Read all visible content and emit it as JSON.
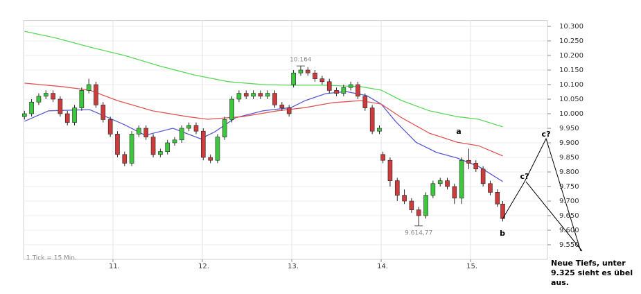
{
  "chart_data": {
    "type": "candlestick",
    "footer": "1 Tick = 15 Min.",
    "xlim": [
      10,
      15.86
    ],
    "xticks": [
      {
        "value": 11,
        "label": "11."
      },
      {
        "value": 12,
        "label": "12."
      },
      {
        "value": 13,
        "label": "13."
      },
      {
        "value": 14,
        "label": "14."
      },
      {
        "value": 15,
        "label": "15."
      }
    ],
    "ylim": [
      9.5,
      10.32
    ],
    "yticks": [
      {
        "value": 10.3,
        "label": "10.300"
      },
      {
        "value": 10.25,
        "label": "10.250"
      },
      {
        "value": 10.2,
        "label": "10.200"
      },
      {
        "value": 10.15,
        "label": "10.150"
      },
      {
        "value": 10.1,
        "label": "10.100"
      },
      {
        "value": 10.05,
        "label": "10.050"
      },
      {
        "value": 10,
        "label": "10.000"
      },
      {
        "value": 9.95,
        "label": "9.950"
      },
      {
        "value": 9.9,
        "label": "9.900"
      },
      {
        "value": 9.85,
        "label": "9.850"
      },
      {
        "value": 9.8,
        "label": "9.800"
      },
      {
        "value": 9.75,
        "label": "9.750"
      },
      {
        "value": 9.7,
        "label": "9.700"
      },
      {
        "value": 9.65,
        "label": "9.650"
      },
      {
        "value": 9.6,
        "label": "9.600"
      },
      {
        "value": 9.55,
        "label": "9.550"
      }
    ],
    "grid": true,
    "candles": {
      "up_color": "#3cc83c",
      "down_color": "#cc3c3c",
      "x": [
        10.01,
        10.09,
        10.17,
        10.25,
        10.33,
        10.41,
        10.49,
        10.57,
        10.65,
        10.73,
        10.81,
        10.89,
        10.97,
        11.05,
        11.13,
        11.21,
        11.29,
        11.37,
        11.45,
        11.53,
        11.61,
        11.69,
        11.77,
        11.85,
        11.93,
        12.01,
        12.09,
        12.17,
        12.25,
        12.33,
        12.41,
        12.49,
        12.57,
        12.65,
        12.73,
        12.81,
        12.89,
        12.97,
        13.02,
        13.1,
        13.18,
        13.26,
        13.34,
        13.42,
        13.5,
        13.58,
        13.66,
        13.74,
        13.82,
        13.9,
        13.98,
        14.02,
        14.1,
        14.18,
        14.26,
        14.34,
        14.42,
        14.5,
        14.58,
        14.66,
        14.74,
        14.82,
        14.9,
        14.98,
        15.06,
        15.14,
        15.22,
        15.3,
        15.36
      ],
      "open": [
        9.99,
        10.0,
        10.04,
        10.06,
        10.07,
        10.05,
        10.0,
        9.97,
        10.02,
        10.08,
        10.1,
        10.03,
        9.98,
        9.93,
        9.86,
        9.83,
        9.93,
        9.95,
        9.92,
        9.86,
        9.87,
        9.9,
        9.91,
        9.95,
        9.96,
        9.94,
        9.85,
        9.84,
        9.92,
        9.98,
        10.05,
        10.07,
        10.06,
        10.07,
        10.06,
        10.07,
        10.03,
        10.02,
        10.1,
        10.14,
        10.15,
        10.14,
        10.12,
        10.11,
        10.08,
        10.07,
        10.09,
        10.1,
        10.06,
        10.02,
        9.94,
        9.86,
        9.84,
        9.77,
        9.72,
        9.7,
        9.67,
        9.65,
        9.72,
        9.76,
        9.77,
        9.75,
        9.71,
        9.84,
        9.83,
        9.81,
        9.76,
        9.73,
        9.69
      ],
      "high": [
        10.01,
        10.05,
        10.07,
        10.08,
        10.08,
        10.06,
        10.01,
        10.03,
        10.09,
        10.12,
        10.11,
        10.04,
        9.99,
        9.94,
        9.87,
        9.94,
        9.96,
        9.96,
        9.93,
        9.88,
        9.91,
        9.92,
        9.96,
        9.97,
        9.97,
        9.95,
        9.86,
        9.93,
        9.99,
        10.06,
        10.08,
        10.08,
        10.08,
        10.08,
        10.08,
        10.08,
        10.04,
        10.03,
        10.15,
        10.164,
        10.16,
        10.15,
        10.13,
        10.12,
        10.09,
        10.1,
        10.11,
        10.11,
        10.07,
        10.03,
        9.96,
        9.87,
        9.85,
        9.78,
        9.74,
        9.71,
        9.68,
        9.73,
        9.77,
        9.78,
        9.78,
        9.76,
        9.85,
        9.88,
        9.84,
        9.82,
        9.77,
        9.74,
        9.7
      ],
      "low": [
        9.98,
        9.99,
        10.03,
        10.05,
        10.04,
        9.99,
        9.96,
        9.96,
        10.01,
        10.07,
        10.02,
        9.97,
        9.92,
        9.85,
        9.82,
        9.82,
        9.92,
        9.91,
        9.85,
        9.85,
        9.86,
        9.89,
        9.9,
        9.94,
        9.93,
        9.84,
        9.83,
        9.83,
        9.91,
        9.97,
        10.04,
        10.05,
        10.05,
        10.05,
        10.05,
        10.02,
        10.01,
        9.99,
        10.09,
        10.13,
        10.13,
        10.11,
        10.1,
        10.07,
        10.06,
        10.06,
        10.08,
        10.05,
        10.01,
        9.93,
        9.93,
        9.83,
        9.75,
        9.7,
        9.69,
        9.66,
        9.61477,
        9.64,
        9.71,
        9.75,
        9.74,
        9.69,
        9.69,
        9.81,
        9.8,
        9.75,
        9.72,
        9.68,
        9.63
      ],
      "close": [
        10.0,
        10.04,
        10.06,
        10.07,
        10.05,
        10.0,
        9.97,
        10.02,
        10.08,
        10.1,
        10.03,
        9.98,
        9.93,
        9.86,
        9.83,
        9.93,
        9.95,
        9.92,
        9.86,
        9.87,
        9.9,
        9.91,
        9.95,
        9.96,
        9.94,
        9.85,
        9.84,
        9.92,
        9.98,
        10.05,
        10.07,
        10.06,
        10.07,
        10.06,
        10.07,
        10.03,
        10.02,
        10.0,
        10.14,
        10.15,
        10.14,
        10.12,
        10.11,
        10.08,
        10.07,
        10.09,
        10.1,
        10.06,
        10.02,
        9.94,
        9.95,
        9.84,
        9.77,
        9.72,
        9.7,
        9.67,
        9.65,
        9.72,
        9.76,
        9.77,
        9.75,
        9.71,
        9.84,
        9.83,
        9.81,
        9.76,
        9.73,
        9.69,
        9.64
      ],
      "extreme_labels": [
        {
          "value": 10.164,
          "label": "10.164"
        },
        {
          "value": 9.61477,
          "label": "9.614,77"
        }
      ]
    },
    "moving_averages": [
      {
        "color": "#5a5ad2",
        "x": [
          10.01,
          10.28,
          10.74,
          11.13,
          11.36,
          11.67,
          11.98,
          12.14,
          12.37,
          12.68,
          12.99,
          13.15,
          13.38,
          13.61,
          13.84,
          14.0,
          14.16,
          14.39,
          14.62,
          14.85,
          15.09,
          15.36
        ],
        "values": [
          9.974,
          10.01,
          10.014,
          9.962,
          9.926,
          9.95,
          9.914,
          9.938,
          9.986,
          10.01,
          10.021,
          10.045,
          10.069,
          10.076,
          10.062,
          10.033,
          9.974,
          9.902,
          9.867,
          9.848,
          9.819,
          9.767
        ]
      },
      {
        "color": "#e25555",
        "x": [
          10.01,
          10.43,
          10.74,
          11.05,
          11.44,
          11.83,
          12.06,
          12.45,
          12.84,
          13.15,
          13.46,
          13.77,
          14.0,
          14.23,
          14.54,
          14.85,
          15.09,
          15.36
        ],
        "values": [
          10.105,
          10.093,
          10.081,
          10.045,
          10.01,
          9.99,
          9.981,
          9.99,
          10.01,
          10.021,
          10.038,
          10.045,
          10.033,
          9.986,
          9.933,
          9.902,
          9.89,
          9.855
        ]
      },
      {
        "color": "#5ad85a",
        "x": [
          10.01,
          10.36,
          10.74,
          11.13,
          11.52,
          11.91,
          12.29,
          12.68,
          12.99,
          13.38,
          13.77,
          14.0,
          14.23,
          14.54,
          14.85,
          15.09,
          15.36
        ],
        "values": [
          10.283,
          10.26,
          10.229,
          10.2,
          10.164,
          10.133,
          10.11,
          10.1,
          10.098,
          10.098,
          10.093,
          10.081,
          10.045,
          10.01,
          9.99,
          9.981,
          9.955
        ]
      }
    ],
    "annotations": {
      "a": "a",
      "b": "b",
      "c1": "c?",
      "c2": "c?",
      "note": [
        "Neue Tiefs, unter",
        "9.325 sieht es übel",
        "aus."
      ]
    }
  }
}
